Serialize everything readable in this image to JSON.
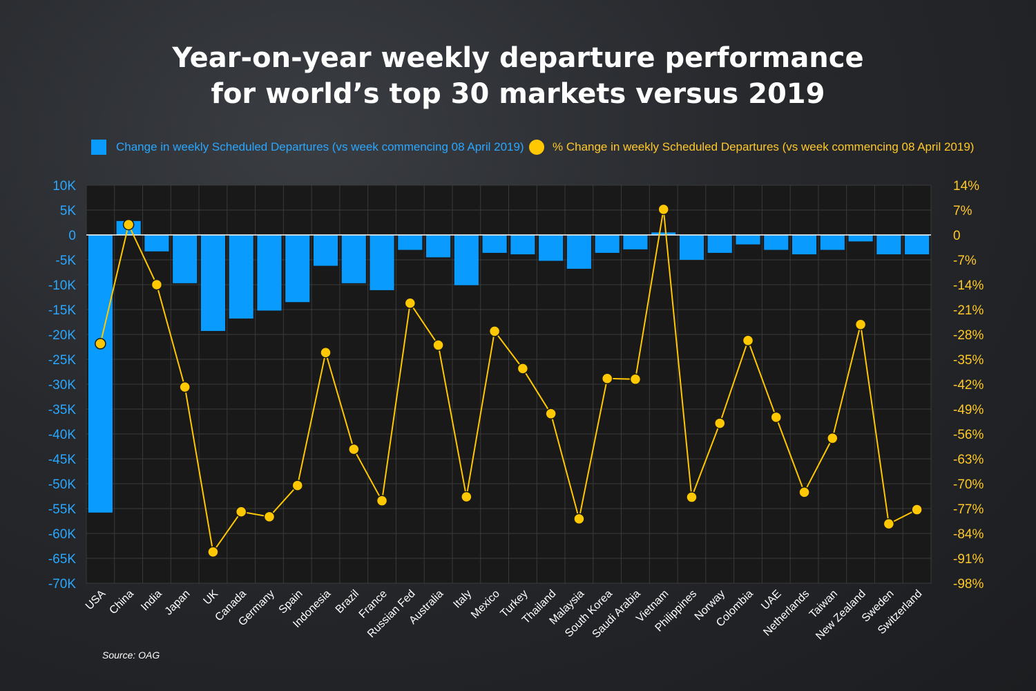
{
  "title": {
    "line1": "Year-on-year weekly departure performance",
    "line2": "for world’s top 30 markets versus 2019"
  },
  "source": "Source: OAG",
  "colors": {
    "bar": "#0a9bff",
    "line": "#ffc800",
    "left_axis_text": "#2aa7ff",
    "right_axis_text": "#ffc82a",
    "plot_bg": "#191919"
  },
  "chart_data": {
    "type": "bar",
    "title": "Year-on-year weekly departure performance for world’s top 30 markets versus 2019",
    "grid": true,
    "legend_position": "top",
    "categories": [
      "USA",
      "China",
      "India",
      "Japan",
      "UK",
      "Canada",
      "Germany",
      "Spain",
      "Indonesia",
      "Brazil",
      "France",
      "Russian Fed",
      "Australia",
      "Italy",
      "Mexico",
      "Turkey",
      "Thailand",
      "Malaysia",
      "South Korea",
      "Saudi Arabia",
      "Vietnam",
      "Philippines",
      "Norway",
      "Colombia",
      "UAE",
      "Netherlands",
      "Taiwan",
      "New Zealand",
      "Sweden",
      "Switzerland"
    ],
    "y_left": {
      "ylim": [
        -70000,
        10000
      ],
      "ticks": [
        10000,
        5000,
        0,
        -5000,
        -10000,
        -15000,
        -20000,
        -25000,
        -30000,
        -35000,
        -40000,
        -45000,
        -50000,
        -55000,
        -60000,
        -65000,
        -70000
      ],
      "tick_labels": [
        "10K",
        "5K",
        "0",
        "-5K",
        "-10K",
        "-15K",
        "-20K",
        "-25K",
        "-30K",
        "-35K",
        "-40K",
        "-45K",
        "-50K",
        "-55K",
        "-60K",
        "-65K",
        "-70K"
      ]
    },
    "y_right": {
      "ylim": [
        -98,
        14
      ],
      "ticks": [
        14,
        7,
        0,
        -7,
        -14,
        -21,
        -28,
        -35,
        -42,
        -49,
        -56,
        -63,
        -70,
        -77,
        -84,
        -91,
        -98
      ],
      "tick_labels": [
        "14%",
        "7%",
        "0",
        "-7%",
        "-14%",
        "-21%",
        "-28%",
        "-35%",
        "-42%",
        "-49%",
        "-56%",
        "-63%",
        "-70%",
        "-77%",
        "-84%",
        "-91%",
        "-98%"
      ]
    },
    "series": [
      {
        "name": "Change in weekly Scheduled Departures (vs week commencing 08 April 2019)",
        "type": "bar",
        "axis": "left",
        "values": [
          -55800,
          2800,
          -3300,
          -9700,
          -19300,
          -16800,
          -15200,
          -13500,
          -6200,
          -9700,
          -11100,
          -3000,
          -4500,
          -10100,
          -3600,
          -3900,
          -5200,
          -6800,
          -3600,
          -2900,
          500,
          -5000,
          -3600,
          -1900,
          -3000,
          -3900,
          -3000,
          -1300,
          -3900,
          -3900
        ]
      },
      {
        "name": "% Change in weekly Scheduled Departures (vs week commencing 08 April 2019)",
        "type": "line",
        "axis": "right",
        "values": [
          -30.6,
          2.9,
          -14.0,
          -42.8,
          -89.2,
          -77.9,
          -79.3,
          -70.5,
          -33.1,
          -60.3,
          -74.8,
          -19.2,
          -31.0,
          -73.7,
          -27.1,
          -37.6,
          -50.3,
          -79.9,
          -40.4,
          -40.6,
          7.2,
          -73.8,
          -53.0,
          -29.7,
          -51.3,
          -72.4,
          -57.2,
          -25.2,
          -81.3,
          -77.3
        ]
      }
    ]
  }
}
